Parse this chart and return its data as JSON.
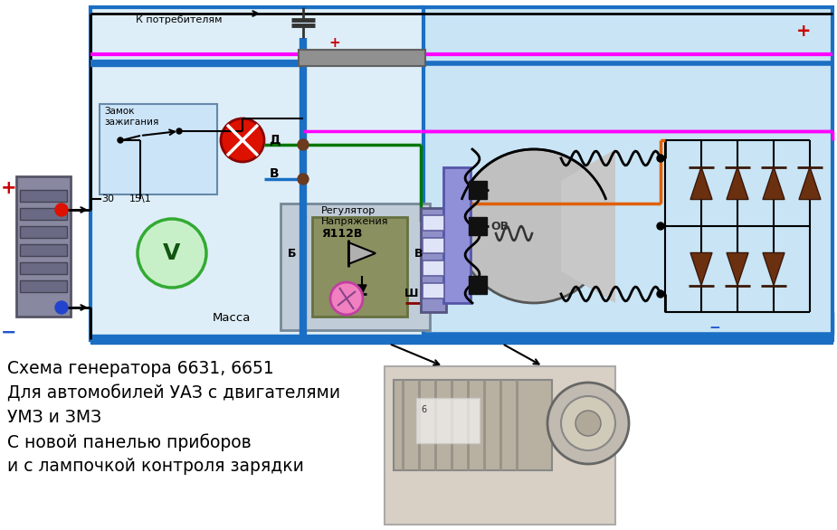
{
  "bg_color": "#ffffff",
  "diagram_bg": "#c8e4f5",
  "diagram_border": "#1a6fc4",
  "text_lines": [
    "Схема генератора 6631, 6651",
    "Для автомобилей УАЗ с двигателями",
    "УМЗ и ЗМЗ",
    "С новой панелью приборов",
    "и с лампочкой контроля зарядки"
  ],
  "k_potrebitelyam": "К потребителям",
  "massa": "Масса",
  "zamok_line1": "Замок",
  "zamok_line2": "зажигания",
  "regulator_line1": "Регулятор",
  "regulator_line2": "Напряжения",
  "regulator_line3": "Я112В",
  "plus_red": "#cc0000",
  "minus_blue": "#2255cc",
  "wire_blue": "#1a6fc4",
  "wire_green": "#007700",
  "wire_pink": "#ff00ff",
  "wire_orange": "#e06000",
  "wire_darkred": "#880000"
}
